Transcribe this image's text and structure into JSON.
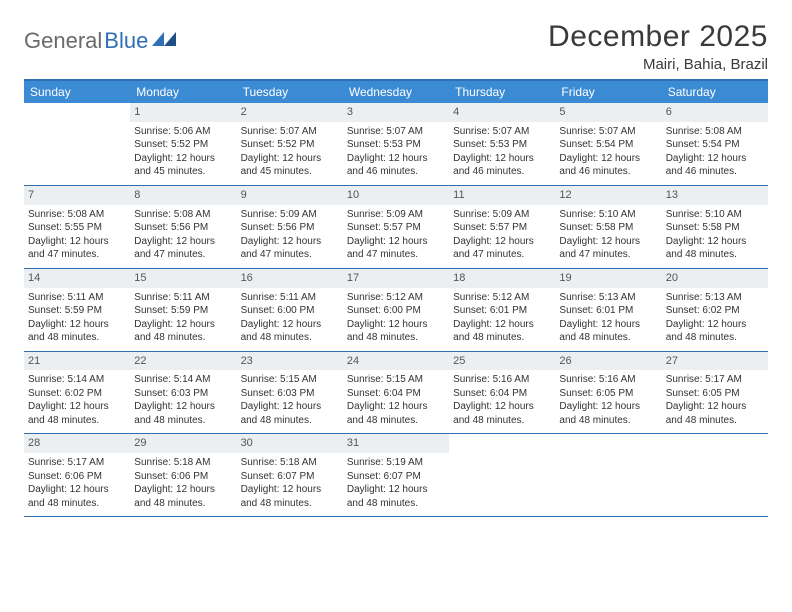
{
  "logo": {
    "word1": "General",
    "word2": "Blue"
  },
  "title": "December 2025",
  "location": "Mairi, Bahia, Brazil",
  "colors": {
    "header_bg": "#3b8bd4",
    "header_text": "#ffffff",
    "border": "#2f6fb3",
    "daynum_bg": "#eceff1",
    "text": "#333333",
    "logo_gray": "#6a6a6a",
    "logo_blue": "#2f6fb3"
  },
  "day_names": [
    "Sunday",
    "Monday",
    "Tuesday",
    "Wednesday",
    "Thursday",
    "Friday",
    "Saturday"
  ],
  "weeks": [
    [
      {
        "n": "",
        "empty": true
      },
      {
        "n": "1",
        "sr": "5:06 AM",
        "ss": "5:52 PM",
        "dl": "12 hours and 45 minutes."
      },
      {
        "n": "2",
        "sr": "5:07 AM",
        "ss": "5:52 PM",
        "dl": "12 hours and 45 minutes."
      },
      {
        "n": "3",
        "sr": "5:07 AM",
        "ss": "5:53 PM",
        "dl": "12 hours and 46 minutes."
      },
      {
        "n": "4",
        "sr": "5:07 AM",
        "ss": "5:53 PM",
        "dl": "12 hours and 46 minutes."
      },
      {
        "n": "5",
        "sr": "5:07 AM",
        "ss": "5:54 PM",
        "dl": "12 hours and 46 minutes."
      },
      {
        "n": "6",
        "sr": "5:08 AM",
        "ss": "5:54 PM",
        "dl": "12 hours and 46 minutes."
      }
    ],
    [
      {
        "n": "7",
        "sr": "5:08 AM",
        "ss": "5:55 PM",
        "dl": "12 hours and 47 minutes."
      },
      {
        "n": "8",
        "sr": "5:08 AM",
        "ss": "5:56 PM",
        "dl": "12 hours and 47 minutes."
      },
      {
        "n": "9",
        "sr": "5:09 AM",
        "ss": "5:56 PM",
        "dl": "12 hours and 47 minutes."
      },
      {
        "n": "10",
        "sr": "5:09 AM",
        "ss": "5:57 PM",
        "dl": "12 hours and 47 minutes."
      },
      {
        "n": "11",
        "sr": "5:09 AM",
        "ss": "5:57 PM",
        "dl": "12 hours and 47 minutes."
      },
      {
        "n": "12",
        "sr": "5:10 AM",
        "ss": "5:58 PM",
        "dl": "12 hours and 47 minutes."
      },
      {
        "n": "13",
        "sr": "5:10 AM",
        "ss": "5:58 PM",
        "dl": "12 hours and 48 minutes."
      }
    ],
    [
      {
        "n": "14",
        "sr": "5:11 AM",
        "ss": "5:59 PM",
        "dl": "12 hours and 48 minutes."
      },
      {
        "n": "15",
        "sr": "5:11 AM",
        "ss": "5:59 PM",
        "dl": "12 hours and 48 minutes."
      },
      {
        "n": "16",
        "sr": "5:11 AM",
        "ss": "6:00 PM",
        "dl": "12 hours and 48 minutes."
      },
      {
        "n": "17",
        "sr": "5:12 AM",
        "ss": "6:00 PM",
        "dl": "12 hours and 48 minutes."
      },
      {
        "n": "18",
        "sr": "5:12 AM",
        "ss": "6:01 PM",
        "dl": "12 hours and 48 minutes."
      },
      {
        "n": "19",
        "sr": "5:13 AM",
        "ss": "6:01 PM",
        "dl": "12 hours and 48 minutes."
      },
      {
        "n": "20",
        "sr": "5:13 AM",
        "ss": "6:02 PM",
        "dl": "12 hours and 48 minutes."
      }
    ],
    [
      {
        "n": "21",
        "sr": "5:14 AM",
        "ss": "6:02 PM",
        "dl": "12 hours and 48 minutes."
      },
      {
        "n": "22",
        "sr": "5:14 AM",
        "ss": "6:03 PM",
        "dl": "12 hours and 48 minutes."
      },
      {
        "n": "23",
        "sr": "5:15 AM",
        "ss": "6:03 PM",
        "dl": "12 hours and 48 minutes."
      },
      {
        "n": "24",
        "sr": "5:15 AM",
        "ss": "6:04 PM",
        "dl": "12 hours and 48 minutes."
      },
      {
        "n": "25",
        "sr": "5:16 AM",
        "ss": "6:04 PM",
        "dl": "12 hours and 48 minutes."
      },
      {
        "n": "26",
        "sr": "5:16 AM",
        "ss": "6:05 PM",
        "dl": "12 hours and 48 minutes."
      },
      {
        "n": "27",
        "sr": "5:17 AM",
        "ss": "6:05 PM",
        "dl": "12 hours and 48 minutes."
      }
    ],
    [
      {
        "n": "28",
        "sr": "5:17 AM",
        "ss": "6:06 PM",
        "dl": "12 hours and 48 minutes."
      },
      {
        "n": "29",
        "sr": "5:18 AM",
        "ss": "6:06 PM",
        "dl": "12 hours and 48 minutes."
      },
      {
        "n": "30",
        "sr": "5:18 AM",
        "ss": "6:07 PM",
        "dl": "12 hours and 48 minutes."
      },
      {
        "n": "31",
        "sr": "5:19 AM",
        "ss": "6:07 PM",
        "dl": "12 hours and 48 minutes."
      },
      {
        "n": "",
        "empty": true
      },
      {
        "n": "",
        "empty": true
      },
      {
        "n": "",
        "empty": true
      }
    ]
  ],
  "labels": {
    "sunrise": "Sunrise:",
    "sunset": "Sunset:",
    "daylight": "Daylight:"
  }
}
